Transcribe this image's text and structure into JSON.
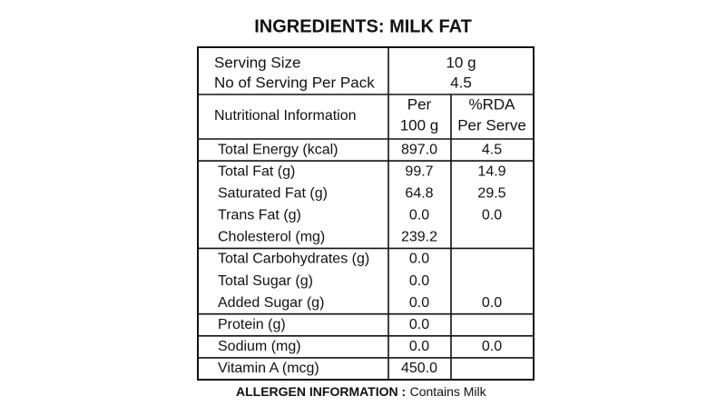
{
  "title": "INGREDIENTS: MILK FAT",
  "serving": [
    {
      "label": "Serving Size",
      "value": "10 g"
    },
    {
      "label": "No of Serving Per Pack",
      "value": "4.5"
    }
  ],
  "header": {
    "label": "Nutritional Information",
    "per_100g": [
      "Per",
      "100 g"
    ],
    "rda": [
      "%RDA",
      "Per Serve"
    ]
  },
  "groups": [
    [
      [
        "Total Energy (kcal)",
        "897.0",
        "4.5"
      ]
    ],
    [
      [
        "Total Fat (g)",
        "99.7",
        "14.9"
      ],
      [
        "Saturated Fat (g)",
        "64.8",
        "29.5"
      ],
      [
        "Trans Fat (g)",
        "0.0",
        "0.0"
      ],
      [
        "Cholesterol (mg)",
        "239.2"
      ]
    ],
    [
      [
        "Total Carbohydrates (g)",
        "0.0"
      ],
      [
        "Total Sugar (g)",
        "0.0"
      ],
      [
        "Added Sugar (g)",
        "0.0",
        "0.0"
      ]
    ],
    [
      [
        "Protein (g)",
        "0.0"
      ]
    ],
    [
      [
        "Sodium (mg)",
        "0.0",
        "0.0"
      ]
    ],
    [
      [
        "Vitamin A (mcg)",
        "450.0"
      ]
    ]
  ],
  "allergen": {
    "label": "ALLERGEN INFORMATION :",
    "text": "Contains Milk"
  }
}
